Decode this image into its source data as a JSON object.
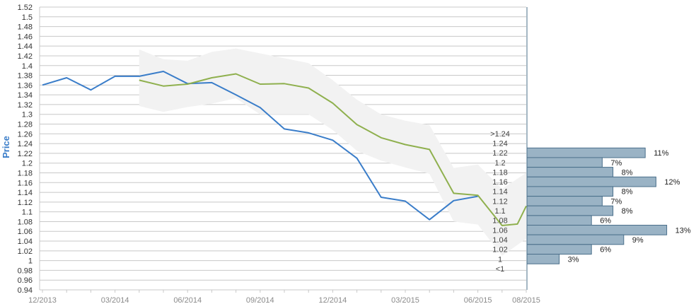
{
  "chart_data": {
    "type": "line",
    "ylabel": "Price",
    "ylim": [
      0.94,
      1.52
    ],
    "yticks": [
      "0.94",
      "0.96",
      "0.98",
      "1",
      "1.02",
      "1.04",
      "1.06",
      "1.08",
      "1.1",
      "1.12",
      "1.14",
      "1.16",
      "1.18",
      "1.2",
      "1.22",
      "1.24",
      "1.26",
      "1.28",
      "1.3",
      "1.32",
      "1.34",
      "1.36",
      "1.38",
      "1.4",
      "1.42",
      "1.44",
      "1.46",
      "1.48",
      "1.5",
      "1.52"
    ],
    "xlim": [
      "2013-12",
      "2015-08"
    ],
    "xticks": [
      {
        "date": "2013-12",
        "label": "12/2013"
      },
      {
        "date": "2014-03",
        "label": "03/2014"
      },
      {
        "date": "2014-06",
        "label": "06/2014"
      },
      {
        "date": "2014-09",
        "label": "09/2014"
      },
      {
        "date": "2014-12",
        "label": "12/2014"
      },
      {
        "date": "2015-03",
        "label": "03/2015"
      },
      {
        "date": "2015-06",
        "label": "06/2015"
      },
      {
        "date": "2015-08",
        "label": "08/2015"
      }
    ],
    "series": [
      {
        "color": "#3a7dc9",
        "points": [
          [
            "2013-12",
            1.36
          ],
          [
            "2014-01",
            1.375
          ],
          [
            "2014-02",
            1.35
          ],
          [
            "2014-03",
            1.378
          ],
          [
            "2014-04",
            1.378
          ],
          [
            "2014-05",
            1.388
          ],
          [
            "2014-06",
            1.363
          ],
          [
            "2014-07",
            1.365
          ],
          [
            "2014-08",
            1.34
          ],
          [
            "2014-09",
            1.314
          ],
          [
            "2014-10",
            1.27
          ],
          [
            "2014-11",
            1.262
          ],
          [
            "2014-12",
            1.247
          ],
          [
            "2015-01",
            1.21
          ],
          [
            "2015-02",
            1.13
          ],
          [
            "2015-03",
            1.122
          ],
          [
            "2015-04",
            1.084
          ],
          [
            "2015-05",
            1.123
          ],
          [
            "2015-06",
            1.132
          ]
        ]
      },
      {
        "color": "#8fb04e",
        "points": [
          [
            "2014-04",
            1.37
          ],
          [
            "2014-05",
            1.358
          ],
          [
            "2014-06",
            1.362
          ],
          [
            "2014-07",
            1.375
          ],
          [
            "2014-08",
            1.383
          ],
          [
            "2014-09",
            1.362
          ],
          [
            "2014-10",
            1.363
          ],
          [
            "2014-11",
            1.354
          ],
          [
            "2014-12",
            1.323
          ],
          [
            "2015-01",
            1.279
          ],
          [
            "2015-02",
            1.252
          ],
          [
            "2015-03",
            1.238
          ],
          [
            "2015-04",
            1.228
          ],
          [
            "2015-05",
            1.138
          ],
          [
            "2015-06",
            1.134
          ],
          [
            "2015-07",
            1.072
          ],
          [
            "2015-07-20",
            1.075
          ],
          [
            "2015-08",
            1.112
          ]
        ]
      }
    ],
    "band": {
      "color": "#f2f2f2",
      "upper": [
        [
          "2014-04",
          1.433
        ],
        [
          "2014-05",
          1.413
        ],
        [
          "2014-06",
          1.41
        ],
        [
          "2014-07",
          1.428
        ],
        [
          "2014-08",
          1.435
        ],
        [
          "2014-09",
          1.425
        ],
        [
          "2014-10",
          1.415
        ],
        [
          "2014-11",
          1.405
        ],
        [
          "2014-12",
          1.37
        ],
        [
          "2015-01",
          1.33
        ],
        [
          "2015-02",
          1.3
        ],
        [
          "2015-03",
          1.287
        ],
        [
          "2015-04",
          1.278
        ],
        [
          "2015-05",
          1.19
        ],
        [
          "2015-06",
          1.197
        ],
        [
          "2015-07",
          1.147
        ],
        [
          "2015-08",
          1.18
        ]
      ],
      "lower": [
        [
          "2014-04",
          1.317
        ],
        [
          "2014-05",
          1.305
        ],
        [
          "2014-06",
          1.315
        ],
        [
          "2014-07",
          1.322
        ],
        [
          "2014-08",
          1.333
        ],
        [
          "2014-09",
          1.3
        ],
        [
          "2014-10",
          1.3
        ],
        [
          "2014-11",
          1.3
        ],
        [
          "2014-12",
          1.268
        ],
        [
          "2015-01",
          1.225
        ],
        [
          "2015-02",
          1.205
        ],
        [
          "2015-03",
          1.191
        ],
        [
          "2015-04",
          1.178
        ],
        [
          "2015-05",
          1.08
        ],
        [
          "2015-06",
          1.074
        ],
        [
          "2015-07",
          1.01
        ],
        [
          "2015-08",
          1.045
        ]
      ]
    },
    "distribution": {
      "bar_color": "#9ab3c5",
      "bins": [
        {
          "label": ">1.24",
          "value": null
        },
        {
          "label": "1.24",
          "value": null
        },
        {
          "label": "1.22",
          "value": 11,
          "text": "11%"
        },
        {
          "label": "1.2",
          "value": 7,
          "text": "7%"
        },
        {
          "label": "1.18",
          "value": 8,
          "text": "8%"
        },
        {
          "label": "1.16",
          "value": 12,
          "text": "12%"
        },
        {
          "label": "1.14",
          "value": 8,
          "text": "8%"
        },
        {
          "label": "1.12",
          "value": 7,
          "text": "7%"
        },
        {
          "label": "1.1",
          "value": 8,
          "text": "8%"
        },
        {
          "label": "1.08",
          "value": 6,
          "text": "6%"
        },
        {
          "label": "1.06",
          "value": 13,
          "text": "13%"
        },
        {
          "label": "1.04",
          "value": 9,
          "text": "9%"
        },
        {
          "label": "1.02",
          "value": 6,
          "text": "6%"
        },
        {
          "label": "1",
          "value": 3,
          "text": "3%"
        },
        {
          "label": "<1",
          "value": null
        }
      ]
    }
  }
}
